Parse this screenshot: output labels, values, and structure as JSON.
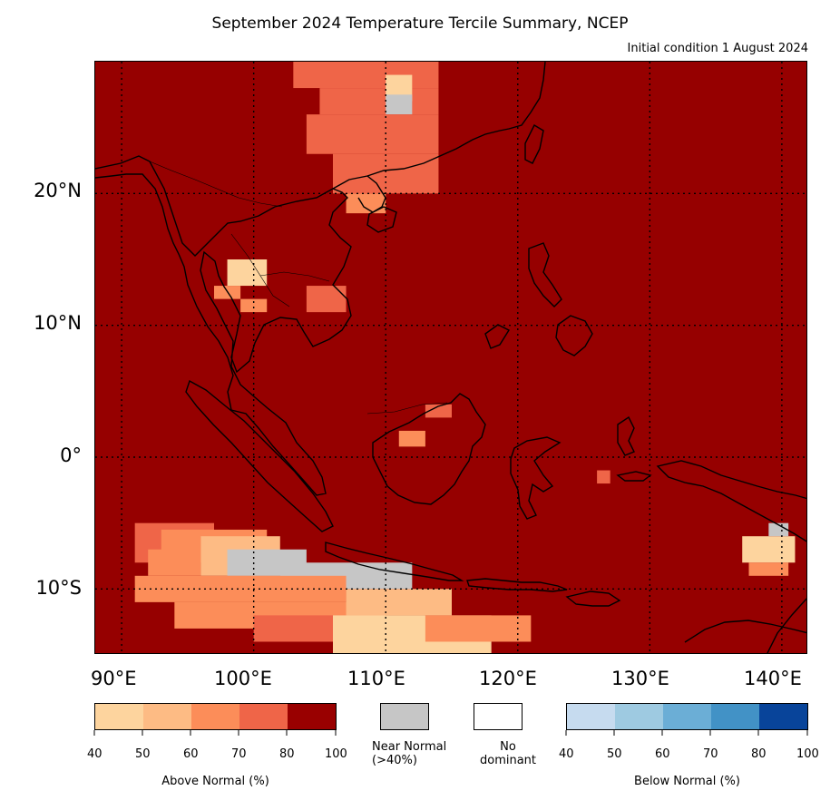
{
  "title": "September 2024 Temperature Tercile Summary, NCEP",
  "subtitle": "Initial condition 1 August 2024",
  "axes": {
    "y_labels": [
      "20°N",
      "10°N",
      "0°",
      "10°S"
    ],
    "x_labels": [
      "90°E",
      "100°E",
      "110°E",
      "120°E",
      "130°E",
      "140°E"
    ],
    "lon_range": [
      88,
      142
    ],
    "lat_range": [
      -15,
      30
    ]
  },
  "legend": {
    "above": {
      "caption": "Above Normal (%)",
      "ticks": [
        "40",
        "50",
        "60",
        "70",
        "80",
        "100"
      ],
      "colors": [
        "#fdd49e",
        "#fdbb84",
        "#fc8d59",
        "#ef6548",
        "#990000"
      ]
    },
    "near": {
      "caption_line1": "Near Normal",
      "caption_line2": "(>40%)",
      "color": "#c6c6c6"
    },
    "none": {
      "caption_line1": "No",
      "caption_line2": "dominant",
      "color": "#ffffff"
    },
    "below": {
      "caption": "Below Normal (%)",
      "ticks": [
        "40",
        "50",
        "60",
        "70",
        "80",
        "100"
      ],
      "colors": [
        "#c6dbef",
        "#9ecae1",
        "#6baed6",
        "#4292c6",
        "#08449a"
      ]
    }
  },
  "colors": {
    "base": "#960000",
    "c70": "#ef6548",
    "c60": "#fc8d59",
    "c50": "#fdbb84",
    "c40": "#fdd49e",
    "near": "#c6c6c6",
    "coast": "#000000"
  }
}
